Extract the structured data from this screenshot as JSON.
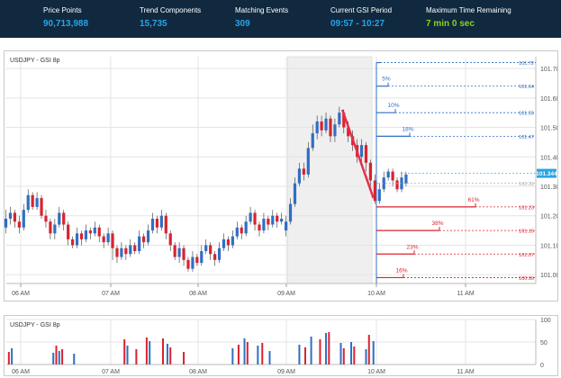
{
  "topbar": {
    "stats": [
      {
        "label": "Price Points",
        "value": "90,713,988",
        "color": "blue"
      },
      {
        "label": "Trend Components",
        "value": "15,735",
        "color": "blue"
      },
      {
        "label": "Matching Events",
        "value": "309",
        "color": "blue"
      },
      {
        "label": "Current GSI Period",
        "value": "09:57 - 10:27",
        "color": "blue"
      },
      {
        "label": "Maximum Time Remaining",
        "value": "7 min 0 sec",
        "color": "green"
      }
    ]
  },
  "chart_data": [
    {
      "type": "candlestick",
      "title": "USDJPY - GSI 8p",
      "x_ticks": [
        "06 AM",
        "07 AM",
        "08 AM",
        "09 AM",
        "10 AM",
        "11 AM"
      ],
      "y_ticks": [
        101.0,
        101.1,
        101.2,
        101.3,
        101.4,
        101.5,
        101.6,
        101.7
      ],
      "y_tick_labels": [
        "101.00",
        "101.10",
        "101.20",
        "101.30",
        "101.40",
        "101.50",
        "101.60",
        "101.70"
      ],
      "ylim": [
        100.97,
        101.74
      ],
      "current_price": "101.344",
      "colors": {
        "up": "#2f6fc4",
        "down": "#d9232e",
        "grid": "#e4e4e4",
        "shade": "#efefef"
      },
      "gsi_window": [
        "09:00",
        "09:57"
      ],
      "down_trend_line": [
        [
          "09:37",
          101.56
        ],
        [
          "09:58",
          101.26
        ]
      ],
      "up_levels": [
        {
          "pct": "5%",
          "price": 101.64,
          "price_label": "101.64"
        },
        {
          "pct": "10%",
          "price": 101.55,
          "price_label": "101.55"
        },
        {
          "pct": "18%",
          "price": 101.47,
          "price_label": "101.47"
        }
      ],
      "top_level": {
        "price": 101.72,
        "price_label": "101.72"
      },
      "reference_level": {
        "price": 101.31,
        "price_label": "101.31"
      },
      "down_levels": [
        {
          "pct": "61%",
          "price": 101.23,
          "price_label": "101.23"
        },
        {
          "pct": "38%",
          "price": 101.15,
          "price_label": "101.15"
        },
        {
          "pct": "23%",
          "price": 101.07,
          "price_label": "101.07"
        },
        {
          "pct": "16%",
          "price": 100.99,
          "price_label": "100.99"
        }
      ],
      "candles": [
        [
          "05:47",
          101.19,
          101.16,
          101.21,
          101.15
        ],
        [
          "05:50",
          101.16,
          101.19,
          101.22,
          101.14
        ],
        [
          "05:53",
          101.19,
          101.21,
          101.23,
          101.17
        ],
        [
          "05:56",
          101.21,
          101.18,
          101.22,
          101.16
        ],
        [
          "05:59",
          101.18,
          101.16,
          101.2,
          101.14
        ],
        [
          "06:02",
          101.16,
          101.22,
          101.24,
          101.15
        ],
        [
          "06:05",
          101.22,
          101.27,
          101.29,
          101.21
        ],
        [
          "06:08",
          101.27,
          101.23,
          101.28,
          101.22
        ],
        [
          "06:11",
          101.23,
          101.26,
          101.28,
          101.22
        ],
        [
          "06:14",
          101.26,
          101.2,
          101.27,
          101.19
        ],
        [
          "06:17",
          101.2,
          101.18,
          101.22,
          101.16
        ],
        [
          "06:20",
          101.18,
          101.14,
          101.19,
          101.12
        ],
        [
          "06:23",
          101.14,
          101.17,
          101.19,
          101.12
        ],
        [
          "06:26",
          101.17,
          101.21,
          101.23,
          101.16
        ],
        [
          "06:29",
          101.21,
          101.17,
          101.22,
          101.15
        ],
        [
          "06:32",
          101.17,
          101.12,
          101.18,
          101.1
        ],
        [
          "06:35",
          101.12,
          101.1,
          101.13,
          101.09
        ],
        [
          "06:38",
          101.1,
          101.14,
          101.16,
          101.09
        ],
        [
          "06:41",
          101.14,
          101.12,
          101.15,
          101.1
        ],
        [
          "06:44",
          101.12,
          101.15,
          101.17,
          101.11
        ],
        [
          "06:47",
          101.15,
          101.14,
          101.16,
          101.12
        ],
        [
          "06:50",
          101.14,
          101.16,
          101.18,
          101.13
        ],
        [
          "06:53",
          101.16,
          101.13,
          101.17,
          101.11
        ],
        [
          "06:56",
          101.13,
          101.11,
          101.14,
          101.09
        ],
        [
          "06:59",
          101.11,
          101.14,
          101.16,
          101.1
        ],
        [
          "07:02",
          101.14,
          101.09,
          101.15,
          101.05
        ],
        [
          "07:05",
          101.09,
          101.06,
          101.1,
          101.04
        ],
        [
          "07:08",
          101.06,
          101.09,
          101.11,
          101.05
        ],
        [
          "07:11",
          101.09,
          101.07,
          101.1,
          101.05
        ],
        [
          "07:14",
          101.07,
          101.1,
          101.12,
          101.06
        ],
        [
          "07:17",
          101.1,
          101.08,
          101.11,
          101.07
        ],
        [
          "07:20",
          101.08,
          101.13,
          101.15,
          101.07
        ],
        [
          "07:23",
          101.13,
          101.11,
          101.14,
          101.09
        ],
        [
          "07:26",
          101.11,
          101.15,
          101.17,
          101.1
        ],
        [
          "07:29",
          101.15,
          101.19,
          101.21,
          101.14
        ],
        [
          "07:32",
          101.19,
          101.16,
          101.2,
          101.14
        ],
        [
          "07:35",
          101.16,
          101.2,
          101.22,
          101.15
        ],
        [
          "07:38",
          101.2,
          101.14,
          101.21,
          101.12
        ],
        [
          "07:41",
          101.14,
          101.1,
          101.15,
          101.08
        ],
        [
          "07:44",
          101.1,
          101.06,
          101.11,
          101.05
        ],
        [
          "07:47",
          101.06,
          101.09,
          101.11,
          101.04
        ],
        [
          "07:50",
          101.09,
          101.05,
          101.1,
          101.03
        ],
        [
          "07:53",
          101.05,
          101.02,
          101.06,
          101.01
        ],
        [
          "07:56",
          101.02,
          101.06,
          101.08,
          101.01
        ],
        [
          "07:59",
          101.06,
          101.04,
          101.07,
          101.03
        ],
        [
          "08:02",
          101.04,
          101.08,
          101.1,
          101.03
        ],
        [
          "08:05",
          101.08,
          101.1,
          101.12,
          101.07
        ],
        [
          "08:08",
          101.1,
          101.07,
          101.11,
          101.05
        ],
        [
          "08:11",
          101.07,
          101.05,
          101.08,
          101.03
        ],
        [
          "08:14",
          101.05,
          101.09,
          101.11,
          101.04
        ],
        [
          "08:17",
          101.09,
          101.12,
          101.14,
          101.08
        ],
        [
          "08:20",
          101.12,
          101.1,
          101.13,
          101.08
        ],
        [
          "08:23",
          101.1,
          101.13,
          101.15,
          101.09
        ],
        [
          "08:26",
          101.13,
          101.16,
          101.18,
          101.12
        ],
        [
          "08:29",
          101.16,
          101.14,
          101.17,
          101.12
        ],
        [
          "08:32",
          101.14,
          101.18,
          101.2,
          101.13
        ],
        [
          "08:35",
          101.18,
          101.21,
          101.23,
          101.17
        ],
        [
          "08:38",
          101.21,
          101.17,
          101.22,
          101.15
        ],
        [
          "08:41",
          101.17,
          101.15,
          101.18,
          101.13
        ],
        [
          "08:44",
          101.15,
          101.19,
          101.21,
          101.14
        ],
        [
          "08:47",
          101.19,
          101.17,
          101.2,
          101.15
        ],
        [
          "08:50",
          101.17,
          101.2,
          101.22,
          101.16
        ],
        [
          "08:53",
          101.2,
          101.18,
          101.21,
          101.16
        ],
        [
          "08:56",
          101.18,
          101.19,
          101.21,
          101.17
        ],
        [
          "08:59",
          101.15,
          101.18,
          101.2,
          101.13
        ],
        [
          "09:02",
          101.18,
          101.24,
          101.26,
          101.17
        ],
        [
          "09:05",
          101.24,
          101.31,
          101.33,
          101.23
        ],
        [
          "09:08",
          101.31,
          101.36,
          101.38,
          101.3
        ],
        [
          "09:11",
          101.36,
          101.34,
          101.38,
          101.32
        ],
        [
          "09:14",
          101.34,
          101.43,
          101.45,
          101.33
        ],
        [
          "09:17",
          101.43,
          101.48,
          101.51,
          101.42
        ],
        [
          "09:20",
          101.48,
          101.52,
          101.54,
          101.46
        ],
        [
          "09:23",
          101.52,
          101.49,
          101.54,
          101.47
        ],
        [
          "09:26",
          101.49,
          101.53,
          101.55,
          101.48
        ],
        [
          "09:29",
          101.53,
          101.47,
          101.54,
          101.45
        ],
        [
          "09:32",
          101.47,
          101.51,
          101.53,
          101.45
        ],
        [
          "09:35",
          101.51,
          101.55,
          101.57,
          101.5
        ],
        [
          "09:38",
          101.55,
          101.5,
          101.56,
          101.48
        ],
        [
          "09:41",
          101.5,
          101.47,
          101.52,
          101.45
        ],
        [
          "09:44",
          101.47,
          101.44,
          101.49,
          101.42
        ],
        [
          "09:47",
          101.44,
          101.4,
          101.46,
          101.38
        ],
        [
          "09:50",
          101.4,
          101.44,
          101.46,
          101.38
        ],
        [
          "09:53",
          101.44,
          101.38,
          101.45,
          101.35
        ],
        [
          "09:56",
          101.38,
          101.32,
          101.39,
          101.3
        ],
        [
          "09:59",
          101.32,
          101.25,
          101.34,
          101.24
        ],
        [
          "10:02",
          101.25,
          101.29,
          101.31,
          101.24
        ],
        [
          "10:05",
          101.29,
          101.33,
          101.35,
          101.28
        ],
        [
          "10:08",
          101.33,
          101.35,
          101.36,
          101.32
        ],
        [
          "10:11",
          101.35,
          101.32,
          101.36,
          101.3
        ],
        [
          "10:14",
          101.32,
          101.29,
          101.33,
          101.28
        ],
        [
          "10:17",
          101.29,
          101.33,
          101.35,
          101.28
        ],
        [
          "10:20",
          101.31,
          101.34,
          101.35,
          101.3
        ]
      ]
    },
    {
      "type": "bar",
      "title": "USDJPY - GSI 8p",
      "x_ticks": [
        "06 AM",
        "07 AM",
        "08 AM",
        "09 AM",
        "10 AM",
        "11 AM"
      ],
      "ylim": [
        0,
        100
      ],
      "y_ticks": [
        0,
        50,
        100
      ],
      "y_tick_labels": [
        "0",
        "50",
        "100"
      ],
      "bars": [
        [
          "05:52",
          28,
          "#d9232e"
        ],
        [
          "05:54",
          36,
          "#2f6fc4"
        ],
        [
          "06:22",
          26,
          "#2f6fc4"
        ],
        [
          "06:24",
          42,
          "#d9232e"
        ],
        [
          "06:26",
          30,
          "#2f6fc4"
        ],
        [
          "06:28",
          34,
          "#d9232e"
        ],
        [
          "06:36",
          24,
          "#2f6fc4"
        ],
        [
          "07:10",
          56,
          "#d9232e"
        ],
        [
          "07:12",
          42,
          "#2f6fc4"
        ],
        [
          "07:18",
          34,
          "#d9232e"
        ],
        [
          "07:25",
          60,
          "#d9232e"
        ],
        [
          "07:27",
          52,
          "#2f6fc4"
        ],
        [
          "07:36",
          58,
          "#d9232e"
        ],
        [
          "07:39",
          46,
          "#2f6fc4"
        ],
        [
          "07:41",
          38,
          "#d9232e"
        ],
        [
          "07:50",
          28,
          "#d9232e"
        ],
        [
          "08:23",
          36,
          "#2f6fc4"
        ],
        [
          "08:27",
          44,
          "#d9232e"
        ],
        [
          "08:31",
          58,
          "#2f6fc4"
        ],
        [
          "08:33",
          50,
          "#d9232e"
        ],
        [
          "08:40",
          42,
          "#2f6fc4"
        ],
        [
          "08:43",
          48,
          "#d9232e"
        ],
        [
          "08:48",
          30,
          "#2f6fc4"
        ],
        [
          "09:08",
          44,
          "#2f6fc4"
        ],
        [
          "09:12",
          38,
          "#d9232e"
        ],
        [
          "09:16",
          62,
          "#2f6fc4"
        ],
        [
          "09:22",
          56,
          "#d9232e"
        ],
        [
          "09:26",
          70,
          "#2f6fc4"
        ],
        [
          "09:28",
          72,
          "#d9232e"
        ],
        [
          "09:36",
          48,
          "#2f6fc4"
        ],
        [
          "09:38",
          36,
          "#d9232e"
        ],
        [
          "09:43",
          50,
          "#2f6fc4"
        ],
        [
          "09:45",
          40,
          "#d9232e"
        ],
        [
          "09:53",
          34,
          "#2f6fc4"
        ],
        [
          "09:55",
          66,
          "#d9232e"
        ],
        [
          "09:58",
          52,
          "#2f6fc4"
        ]
      ]
    }
  ]
}
